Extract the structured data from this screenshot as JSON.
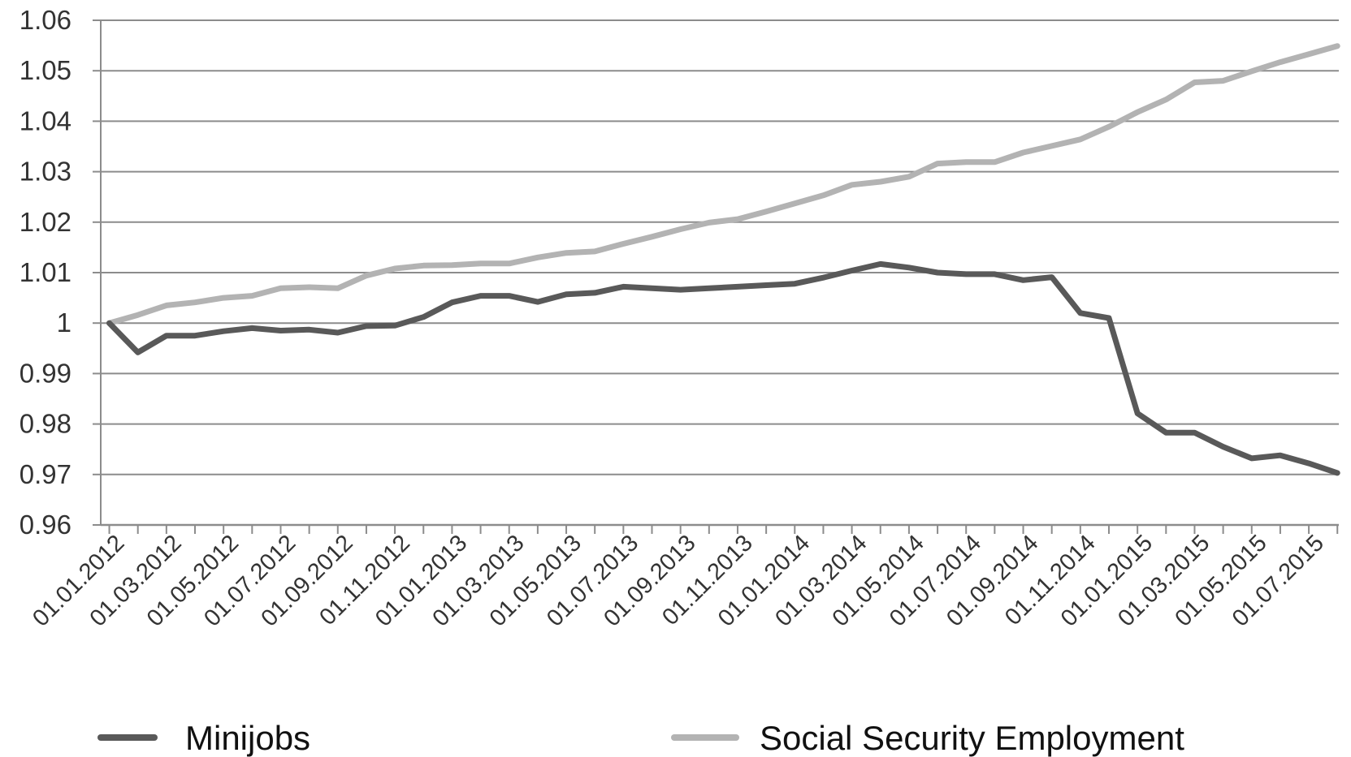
{
  "chart_data": {
    "type": "line",
    "title": "",
    "xlabel": "",
    "ylabel": "",
    "ylim": [
      0.96,
      1.06
    ],
    "yticks": [
      "1.06",
      "1.05",
      "1.04",
      "1.03",
      "1.02",
      "1.01",
      "1",
      "0.99",
      "0.98",
      "0.97",
      "0.96"
    ],
    "grid": "horizontal",
    "legend_position": "bottom",
    "x": [
      "01.01.2012",
      "01.02.2012",
      "01.03.2012",
      "01.04.2012",
      "01.05.2012",
      "01.06.2012",
      "01.07.2012",
      "01.08.2012",
      "01.09.2012",
      "01.10.2012",
      "01.11.2012",
      "01.12.2012",
      "01.01.2013",
      "01.02.2013",
      "01.03.2013",
      "01.04.2013",
      "01.05.2013",
      "01.06.2013",
      "01.07.2013",
      "01.08.2013",
      "01.09.2013",
      "01.10.2013",
      "01.11.2013",
      "01.12.2013",
      "01.01.2014",
      "01.02.2014",
      "01.03.2014",
      "01.04.2014",
      "01.05.2014",
      "01.06.2014",
      "01.07.2014",
      "01.08.2014",
      "01.09.2014",
      "01.10.2014",
      "01.11.2014",
      "01.12.2014",
      "01.01.2015",
      "01.02.2015",
      "01.03.2015",
      "01.04.2015",
      "01.05.2015",
      "01.06.2015",
      "01.07.2015",
      "01.08.2015"
    ],
    "xtick_labels": [
      "01.01.2012",
      "01.03.2012",
      "01.05.2012",
      "01.07.2012",
      "01.09.2012",
      "01.11.2012",
      "01.01.2013",
      "01.03.2013",
      "01.05.2013",
      "01.07.2013",
      "01.09.2013",
      "01.11.2013",
      "01.01.2014",
      "01.03.2014",
      "01.05.2014",
      "01.07.2014",
      "01.09.2014",
      "01.11.2014",
      "01.01.2015",
      "01.03.2015",
      "01.05.2015",
      "01.07.2015"
    ],
    "series": [
      {
        "name": "Minijobs",
        "color": "#595959",
        "values": [
          1.0,
          0.9942,
          0.9975,
          0.9975,
          0.9984,
          0.999,
          0.9985,
          0.9987,
          0.9981,
          0.9994,
          0.9995,
          1.0012,
          1.0041,
          1.0054,
          1.0054,
          1.0042,
          1.0057,
          1.006,
          1.0072,
          1.0069,
          1.0066,
          1.0069,
          1.0072,
          1.0075,
          1.0078,
          1.009,
          1.0104,
          1.0117,
          1.011,
          1.01,
          1.0097,
          1.0097,
          1.0085,
          1.0091,
          1.002,
          1.001,
          0.9821,
          0.9783,
          0.9783,
          0.9755,
          0.9732,
          0.9738,
          0.9722,
          0.9703
        ]
      },
      {
        "name": "Social Security Employment",
        "color": "#b3b3b3",
        "values": [
          1.0,
          1.0016,
          1.0035,
          1.0041,
          1.005,
          1.0054,
          1.0069,
          1.0071,
          1.0069,
          1.0094,
          1.0108,
          1.0114,
          1.0115,
          1.0118,
          1.0118,
          1.013,
          1.0139,
          1.0142,
          1.0157,
          1.0171,
          1.0186,
          1.0199,
          1.0206,
          1.0221,
          1.0237,
          1.0253,
          1.0274,
          1.028,
          1.029,
          1.0316,
          1.0319,
          1.0319,
          1.0338,
          1.0351,
          1.0364,
          1.0389,
          1.0418,
          1.0443,
          1.0477,
          1.048,
          1.0499,
          1.0517,
          1.0533,
          1.0549
        ]
      }
    ]
  }
}
